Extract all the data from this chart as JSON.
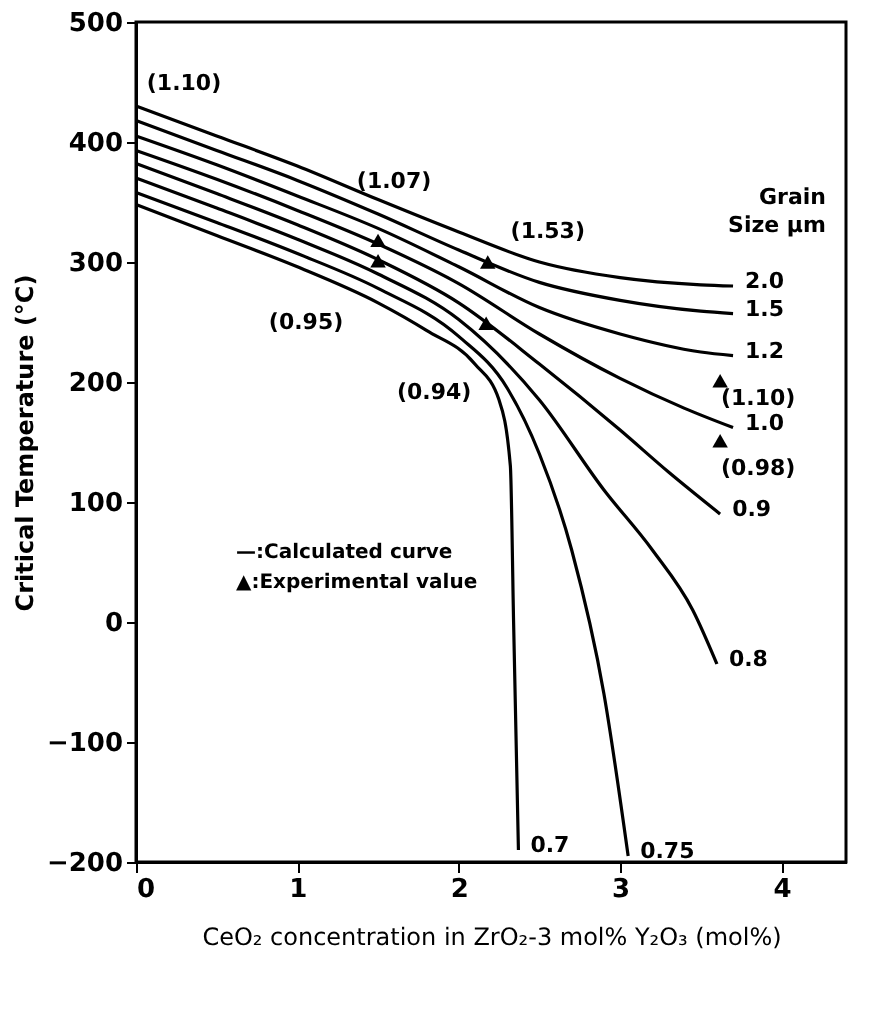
{
  "chart_data": {
    "type": "line",
    "xlabel": "CeO₂ concentration in ZrO₂-3 mol% Y₂O₃ (mol%)",
    "ylabel": "Critical Temperature (°C)",
    "legend_title": "Grain Size µm",
    "xlim": [
      0,
      4.4
    ],
    "xticks": [
      0,
      1,
      2,
      3,
      4
    ],
    "ylim": [
      -200,
      500
    ],
    "yticks": [
      -200,
      -100,
      0,
      100,
      200,
      300,
      400,
      500
    ],
    "grid": false,
    "line_style": "solid",
    "series": [
      {
        "name": "2.0",
        "color": "#000000",
        "x": [
          0,
          0.5,
          1,
          1.5,
          2,
          2.5,
          3,
          3.5,
          3.7
        ],
        "values": [
          430,
          405,
          380,
          352,
          325,
          300,
          287,
          281,
          280
        ]
      },
      {
        "name": "1.5",
        "color": "#000000",
        "x": [
          0,
          0.5,
          1,
          1.5,
          2,
          2.5,
          3,
          3.5,
          3.7
        ],
        "values": [
          418,
          393,
          368,
          340,
          310,
          283,
          268,
          259,
          257
        ]
      },
      {
        "name": "1.2",
        "color": "#000000",
        "x": [
          0,
          0.5,
          1,
          1.5,
          2,
          2.5,
          3,
          3.5,
          3.7
        ],
        "values": [
          405,
          381,
          355,
          328,
          296,
          262,
          240,
          225,
          222
        ]
      },
      {
        "name": "1.0",
        "color": "#000000",
        "x": [
          0,
          0.5,
          1,
          1.5,
          2,
          2.5,
          3,
          3.4,
          3.7
        ],
        "values": [
          393,
          369,
          343,
          315,
          282,
          240,
          203,
          178,
          162
        ]
      },
      {
        "name": "0.9",
        "color": "#000000",
        "x": [
          0,
          0.5,
          1,
          1.5,
          2,
          2.5,
          3,
          3.3,
          3.62
        ],
        "values": [
          382,
          357,
          331,
          302,
          266,
          215,
          160,
          125,
          90
        ]
      },
      {
        "name": "0.8",
        "color": "#000000",
        "x": [
          0,
          0.5,
          1,
          1.5,
          2,
          2.5,
          2.9,
          3.2,
          3.45,
          3.6
        ],
        "values": [
          370,
          345,
          319,
          290,
          252,
          185,
          110,
          60,
          10,
          -35
        ]
      },
      {
        "name": "0.75",
        "color": "#000000",
        "x": [
          0,
          0.5,
          1,
          1.5,
          2,
          2.3,
          2.5,
          2.7,
          2.9,
          3.05
        ],
        "values": [
          358,
          333,
          307,
          278,
          238,
          195,
          140,
          60,
          -60,
          -195
        ]
      },
      {
        "name": "0.7",
        "color": "#000000",
        "x": [
          0,
          0.5,
          1,
          1.5,
          1.8,
          2.1,
          2.25,
          2.32,
          2.34,
          2.37
        ],
        "values": [
          348,
          322,
          296,
          266,
          243,
          215,
          185,
          130,
          0,
          -190
        ]
      },
      {
        "type": "scatter",
        "marker": "triangle",
        "color": "#000000",
        "x": [
          1.5,
          1.5,
          2.18,
          2.17,
          3.62,
          3.62
        ],
        "values": [
          318,
          301,
          300,
          249,
          201,
          151
        ]
      }
    ],
    "annotations": [
      {
        "text": "(1.10)",
        "x": 0,
        "y": 430
      },
      {
        "text": "(1.07)",
        "x": 1.5,
        "y": 318
      },
      {
        "text": "(1.53)",
        "x": 2.18,
        "y": 300
      },
      {
        "text": "(0.95)",
        "x": 1.5,
        "y": 301
      },
      {
        "text": "(0.94)",
        "x": 2.17,
        "y": 249
      },
      {
        "text": "(1.10)",
        "x": 3.62,
        "y": 201
      },
      {
        "text": "(0.98)",
        "x": 3.62,
        "y": 151
      },
      "—:Calculated curve",
      "▲:Experimental value"
    ]
  }
}
